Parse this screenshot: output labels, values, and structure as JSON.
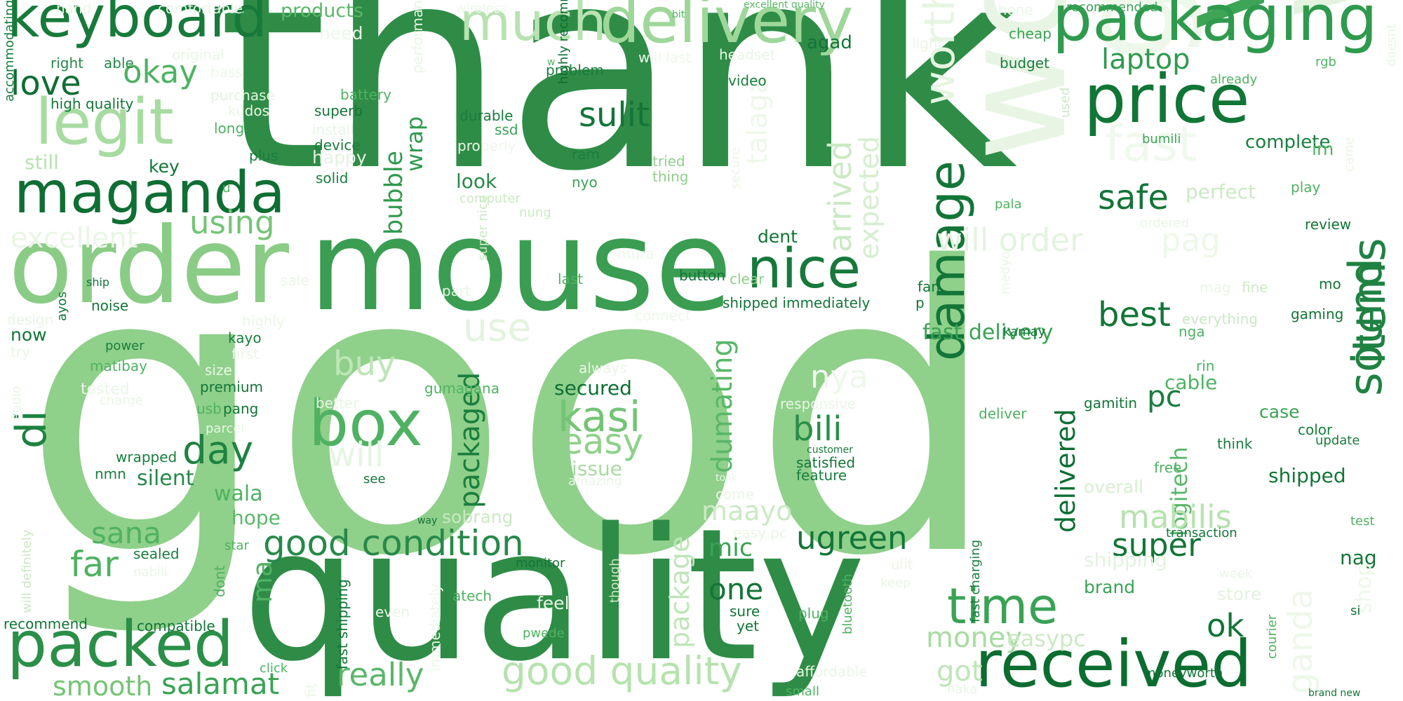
{
  "words": [
    {
      "text": "good",
      "color": "#8fd08a"
    },
    {
      "text": "thank",
      "color": "#2e8c46"
    },
    {
      "text": "quality",
      "color": "#2e8c46"
    },
    {
      "text": "mouse",
      "color": "#3a9d52"
    },
    {
      "text": "working",
      "color": "#e3f3df"
    },
    {
      "text": "work",
      "color": "#e8f5e4"
    },
    {
      "text": "great",
      "color": "#eef8ea"
    },
    {
      "text": "value",
      "color": "#3da555"
    },
    {
      "text": "order",
      "color": "#8acc86"
    },
    {
      "text": "packaging",
      "color": "#2f9a4e"
    },
    {
      "text": "delivery",
      "color": "#9fd79a"
    },
    {
      "text": "keyboard",
      "color": "#177a3b"
    },
    {
      "text": "price",
      "color": "#117536"
    },
    {
      "text": "received",
      "color": "#0b6d30"
    },
    {
      "text": "packed",
      "color": "#2a8f47"
    },
    {
      "text": "maganda",
      "color": "#0f6e33"
    },
    {
      "text": "legit",
      "color": "#a8dba2"
    },
    {
      "text": "much",
      "color": "#b9e2b2"
    },
    {
      "text": "box",
      "color": "#4fb262"
    },
    {
      "text": "nice",
      "color": "#16793b"
    },
    {
      "text": "damage",
      "color": "#137538"
    },
    {
      "text": "sound",
      "color": "#1f8242"
    },
    {
      "text": "items",
      "color": "#1f8242"
    },
    {
      "text": "time",
      "color": "#3aa255"
    },
    {
      "text": "worth",
      "color": "#e6f5e2"
    },
    {
      "text": "fast",
      "color": "#f0f9ed"
    },
    {
      "text": "good condition",
      "color": "#27894a"
    },
    {
      "text": "good quality",
      "color": "#b6e2ae"
    },
    {
      "text": "love",
      "color": "#0e6e33"
    },
    {
      "text": "okay",
      "color": "#4fb262"
    },
    {
      "text": "laptop",
      "color": "#2f9a4e"
    },
    {
      "text": "sulit",
      "color": "#137538"
    },
    {
      "text": "safe",
      "color": "#137538"
    },
    {
      "text": "best",
      "color": "#137538"
    },
    {
      "text": "will order",
      "color": "#e3f3df"
    },
    {
      "text": "using",
      "color": "#74c476"
    },
    {
      "text": "excellent",
      "color": "#eaf6e6"
    },
    {
      "text": "di",
      "color": "#1e8241"
    },
    {
      "text": "day",
      "color": "#1e8241"
    },
    {
      "text": "use",
      "color": "#e3f3df"
    },
    {
      "text": "buy",
      "color": "#bfe5b8"
    },
    {
      "text": "kasi",
      "color": "#74c476"
    },
    {
      "text": "easy",
      "color": "#8fd08a"
    },
    {
      "text": "bili",
      "color": "#2a8f47"
    },
    {
      "text": "nya",
      "color": "#eef8ea"
    },
    {
      "text": "will",
      "color": "#e6f5e2"
    },
    {
      "text": "packaged",
      "color": "#1a7d3e"
    },
    {
      "text": "dumating",
      "color": "#5ab769"
    },
    {
      "text": "arrived",
      "color": "#cbe9c4"
    },
    {
      "text": "expected",
      "color": "#d6eed0"
    },
    {
      "text": "talaga",
      "color": "#eef8ea"
    },
    {
      "text": "bubble",
      "color": "#2f9a4e"
    },
    {
      "text": "wrap",
      "color": "#2f9a4e"
    },
    {
      "text": "delivered",
      "color": "#0e6e33"
    },
    {
      "text": "logitech",
      "color": "#5ab769"
    },
    {
      "text": "mabilis",
      "color": "#b6e2ae"
    },
    {
      "text": "pag",
      "color": "#eef8ea"
    },
    {
      "text": "pc",
      "color": "#1a7d3e"
    },
    {
      "text": "super",
      "color": "#137538"
    },
    {
      "text": "ugreen",
      "color": "#137538"
    },
    {
      "text": "sana",
      "color": "#4fb262"
    },
    {
      "text": "far",
      "color": "#4fb262"
    },
    {
      "text": "one",
      "color": "#137538"
    },
    {
      "text": "money",
      "color": "#a8dba2"
    },
    {
      "text": "easypc",
      "color": "#cbe9c4"
    },
    {
      "text": "ok",
      "color": "#117536"
    },
    {
      "text": "really",
      "color": "#5ab769"
    },
    {
      "text": "salamat",
      "color": "#3aa255"
    },
    {
      "text": "smooth",
      "color": "#74c476"
    },
    {
      "text": "package",
      "color": "#bfe5b8"
    },
    {
      "text": "maayo",
      "color": "#cbe9c4"
    },
    {
      "text": "mic",
      "color": "#3aa255"
    },
    {
      "text": "ma",
      "color": "#4fb262"
    },
    {
      "text": "got",
      "color": "#bfe5b8"
    },
    {
      "text": "ganda",
      "color": "#eef8ea"
    },
    {
      "text": "fast delivery",
      "color": "#3aa255"
    },
    {
      "text": "shipped",
      "color": "#137538"
    },
    {
      "text": "cable",
      "color": "#4fb262"
    },
    {
      "text": "case",
      "color": "#3aa255"
    },
    {
      "text": "complete",
      "color": "#1a7d3e"
    },
    {
      "text": "perfect",
      "color": "#cbe9c4"
    },
    {
      "text": "wala",
      "color": "#4fb262"
    },
    {
      "text": "hope",
      "color": "#5ab769"
    },
    {
      "text": "silent",
      "color": "#27894a"
    },
    {
      "text": "issue",
      "color": "#a8dba2"
    },
    {
      "text": "look",
      "color": "#27894a"
    },
    {
      "text": "secured",
      "color": "#0e6e33"
    },
    {
      "text": "dent",
      "color": "#117536"
    },
    {
      "text": "sobrang",
      "color": "#cbe9c4"
    },
    {
      "text": "overall",
      "color": "#d6eed0"
    },
    {
      "text": "shipping",
      "color": "#e3f3df"
    },
    {
      "text": "store",
      "color": "#e3f3df"
    },
    {
      "text": "brand",
      "color": "#3aa255"
    },
    {
      "text": "nag",
      "color": "#137538"
    },
    {
      "text": "shop",
      "color": "#eef8ea"
    },
    {
      "text": "key",
      "color": "#117536"
    },
    {
      "text": "still",
      "color": "#b6e2ae"
    },
    {
      "text": "now",
      "color": "#137538"
    },
    {
      "text": "products",
      "color": "#5ab769"
    },
    {
      "text": "agad",
      "color": "#137538"
    },
    {
      "text": "need",
      "color": "#eef8ea"
    },
    {
      "text": "happy",
      "color": "#e3f3df"
    },
    {
      "text": "superb",
      "color": "#137538"
    },
    {
      "text": "battery",
      "color": "#4fb262"
    },
    {
      "text": "long",
      "color": "#4fb262"
    },
    {
      "text": "kudos",
      "color": "#eaf6e6"
    },
    {
      "text": "purchase",
      "color": "#e3f3df"
    },
    {
      "text": "high quality",
      "color": "#137538"
    },
    {
      "text": "right",
      "color": "#27894a"
    },
    {
      "text": "able",
      "color": "#27894a"
    },
    {
      "text": "original",
      "color": "#eaf6e6"
    },
    {
      "text": "bass",
      "color": "#eef8ea"
    },
    {
      "text": "comfortable",
      "color": "#eaf6e6"
    },
    {
      "text": "hand",
      "color": "#eaf6e6"
    },
    {
      "text": "wireless",
      "color": "#eef8ea"
    },
    {
      "text": "bit",
      "color": "#4fb262"
    },
    {
      "text": "excellent quality",
      "color": "#5ab769"
    },
    {
      "text": "phone",
      "color": "#eaf6e6"
    },
    {
      "text": "recommended",
      "color": "#3aa255"
    },
    {
      "text": "will last",
      "color": "#eef8ea"
    },
    {
      "text": "headset",
      "color": "#eaf6e6"
    },
    {
      "text": "light",
      "color": "#eaf6e6"
    },
    {
      "text": "cheap",
      "color": "#3aa255"
    },
    {
      "text": "budget",
      "color": "#1a7d3e"
    },
    {
      "text": "rgb",
      "color": "#4fb262"
    },
    {
      "text": "already",
      "color": "#4fb262"
    },
    {
      "text": "doesnt",
      "color": "#eaf6e6"
    },
    {
      "text": "video",
      "color": "#1a7d3e"
    },
    {
      "text": "problem",
      "color": "#1a7d3e"
    },
    {
      "text": "durable",
      "color": "#1a7d3e"
    },
    {
      "text": "ssd",
      "color": "#3aa255"
    },
    {
      "text": "ram",
      "color": "#1a7d3e"
    },
    {
      "text": "nyo",
      "color": "#3aa255"
    },
    {
      "text": "tried",
      "color": "#8fd08a"
    },
    {
      "text": "thing",
      "color": "#8fd08a"
    },
    {
      "text": "computer",
      "color": "#cbe9c4"
    },
    {
      "text": "nung",
      "color": "#cbe9c4"
    },
    {
      "text": "properly",
      "color": "#eef8ea"
    },
    {
      "text": "highly recommended",
      "color": "#0b6d30"
    },
    {
      "text": "install",
      "color": "#eaf6e6"
    },
    {
      "text": "device",
      "color": "#1a7d3e"
    },
    {
      "text": "solid",
      "color": "#1a7d3e"
    },
    {
      "text": "plus",
      "color": "#1a7d3e"
    },
    {
      "text": "performance",
      "color": "#eaf6e6"
    },
    {
      "text": "accommodating",
      "color": "#1a7d3e"
    },
    {
      "text": "w",
      "color": "#4fb262"
    },
    {
      "text": "u",
      "color": "#4fb262"
    },
    {
      "text": "bumili",
      "color": "#3aa255"
    },
    {
      "text": "used",
      "color": "#cbe9c4"
    },
    {
      "text": "im",
      "color": "#4fb262"
    },
    {
      "text": "play",
      "color": "#4fb262"
    },
    {
      "text": "came",
      "color": "#eaf6e6"
    },
    {
      "text": "pala",
      "color": "#4fb262"
    },
    {
      "text": "ordered",
      "color": "#eaf6e6"
    },
    {
      "text": "review",
      "color": "#137538"
    },
    {
      "text": "secure",
      "color": "#eaf6e6"
    },
    {
      "text": "mura",
      "color": "#eef8ea"
    },
    {
      "text": "clear",
      "color": "#8fd08a"
    },
    {
      "text": "button",
      "color": "#137538"
    },
    {
      "text": "last",
      "color": "#4fb262"
    },
    {
      "text": "part",
      "color": "#eaf6e6"
    },
    {
      "text": "sale",
      "color": "#eaf6e6"
    },
    {
      "text": "super nice",
      "color": "#cbe9c4"
    },
    {
      "text": "gumagana",
      "color": "#4fb262"
    },
    {
      "text": "connect",
      "color": "#eef8ea"
    },
    {
      "text": "shipped immediately",
      "color": "#137538"
    },
    {
      "text": "fan",
      "color": "#137538"
    },
    {
      "text": "p",
      "color": "#137538"
    },
    {
      "text": "medyo",
      "color": "#eaf6e6"
    },
    {
      "text": "mag",
      "color": "#eaf6e6"
    },
    {
      "text": "fine",
      "color": "#cbe9c4"
    },
    {
      "text": "mo",
      "color": "#137538"
    },
    {
      "text": "everything",
      "color": "#cbe9c4"
    },
    {
      "text": "nga",
      "color": "#4fb262"
    },
    {
      "text": "gaming",
      "color": "#137538"
    },
    {
      "text": "kamay",
      "color": "#137538"
    },
    {
      "text": "rin",
      "color": "#4fb262"
    },
    {
      "text": "gamitin",
      "color": "#137538"
    },
    {
      "text": "color",
      "color": "#1a7d3e"
    },
    {
      "text": "update",
      "color": "#1a7d3e"
    },
    {
      "text": "think",
      "color": "#1a7d3e"
    },
    {
      "text": "free",
      "color": "#4fb262"
    },
    {
      "text": "deliver",
      "color": "#4fb262"
    },
    {
      "text": "responsive",
      "color": "#eaf6e6"
    },
    {
      "text": "customer",
      "color": "#1a7d3e"
    },
    {
      "text": "feature",
      "color": "#1a7d3e"
    },
    {
      "text": "satisfied",
      "color": "#137538"
    },
    {
      "text": "always",
      "color": "#eaf6e6"
    },
    {
      "text": "see",
      "color": "#137538"
    },
    {
      "text": "amazing",
      "color": "#eaf6e6"
    },
    {
      "text": "took",
      "color": "#eaf6e6"
    },
    {
      "text": "come",
      "color": "#eaf6e6"
    },
    {
      "text": "easy pc",
      "color": "#eaf6e6"
    },
    {
      "text": "test",
      "color": "#4fb262"
    },
    {
      "text": "week",
      "color": "#eaf6e6"
    },
    {
      "text": "transaction",
      "color": "#137538"
    },
    {
      "text": "si",
      "color": "#137538"
    },
    {
      "text": "courier",
      "color": "#4fb262"
    },
    {
      "text": "moneyworth",
      "color": "#137538"
    },
    {
      "text": "brand new",
      "color": "#137538"
    },
    {
      "text": "naka",
      "color": "#eaf6e6"
    },
    {
      "text": "affordable",
      "color": "#eaf6e6"
    },
    {
      "text": "small",
      "color": "#4fb262"
    },
    {
      "text": "keep",
      "color": "#eaf6e6"
    },
    {
      "text": "ulit",
      "color": "#eaf6e6"
    },
    {
      "text": "fast charging",
      "color": "#1a7d3e"
    },
    {
      "text": "bluetooth",
      "color": "#4fb262"
    },
    {
      "text": "plug",
      "color": "#4fb262"
    },
    {
      "text": "sure",
      "color": "#137538"
    },
    {
      "text": "yet",
      "color": "#137538"
    },
    {
      "text": "pwede",
      "color": "#4fb262"
    },
    {
      "text": "even",
      "color": "#eaf6e6"
    },
    {
      "text": "feel",
      "color": "#eaf6e6"
    },
    {
      "text": "though",
      "color": "#cbe9c4"
    },
    {
      "text": "immediately",
      "color": "#eef8ea"
    },
    {
      "text": "way",
      "color": "#137538"
    },
    {
      "text": "monitor",
      "color": "#137538"
    },
    {
      "text": "atech",
      "color": "#4fb262"
    },
    {
      "text": "dont",
      "color": "#4fb262"
    },
    {
      "text": "fast shipping",
      "color": "#137538"
    },
    {
      "text": "fit",
      "color": "#eaf6e6"
    },
    {
      "text": "click",
      "color": "#4fb262"
    },
    {
      "text": "compatible",
      "color": "#137538"
    },
    {
      "text": "recommend",
      "color": "#137538"
    },
    {
      "text": "will definitely",
      "color": "#cbe9c4"
    },
    {
      "text": "nabili",
      "color": "#eaf6e6"
    },
    {
      "text": "sealed",
      "color": "#1a7d3e"
    },
    {
      "text": "star",
      "color": "#4fb262"
    },
    {
      "text": "nmn",
      "color": "#1a7d3e"
    },
    {
      "text": "wrapped",
      "color": "#1a7d3e"
    },
    {
      "text": "usb",
      "color": "#4fb262"
    },
    {
      "text": "pang",
      "color": "#137538"
    },
    {
      "text": "parcel",
      "color": "#eaf6e6"
    },
    {
      "text": "better",
      "color": "#eaf6e6"
    },
    {
      "text": "premium",
      "color": "#137538"
    },
    {
      "text": "size",
      "color": "#eaf6e6"
    },
    {
      "text": "tested",
      "color": "#eaf6e6"
    },
    {
      "text": "charge",
      "color": "#eaf6e6"
    },
    {
      "text": "matibay",
      "color": "#4fb262"
    },
    {
      "text": "first",
      "color": "#eaf6e6"
    },
    {
      "text": "kayo",
      "color": "#1a7d3e"
    },
    {
      "text": "highly",
      "color": "#eaf6e6"
    },
    {
      "text": "power",
      "color": "#1a7d3e"
    },
    {
      "text": "noise",
      "color": "#137538"
    },
    {
      "text": "ayos",
      "color": "#137538"
    },
    {
      "text": "design",
      "color": "#eaf6e6"
    },
    {
      "text": "try",
      "color": "#eaf6e6"
    },
    {
      "text": "audio",
      "color": "#eaf6e6"
    },
    {
      "text": "ship",
      "color": "#137538"
    }
  ]
}
